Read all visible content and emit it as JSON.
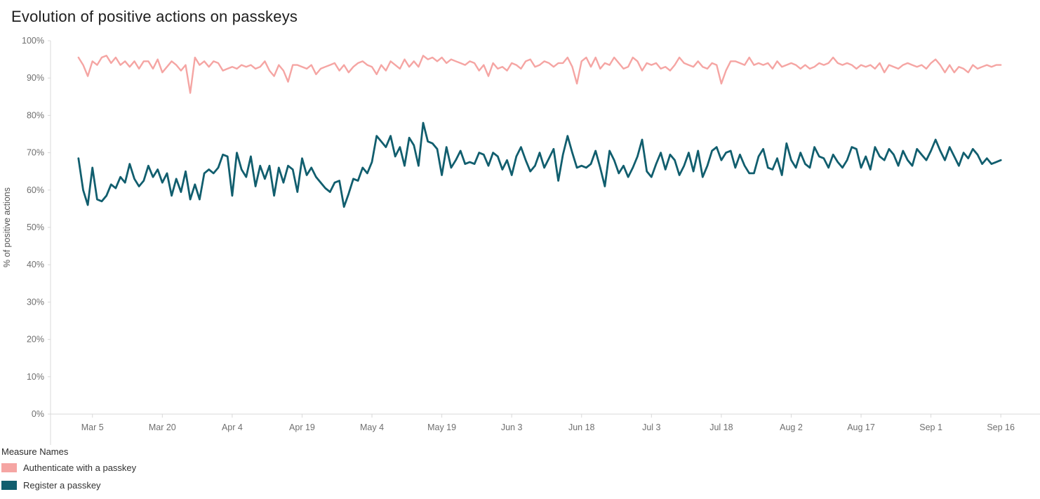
{
  "title": "Evolution of positive actions on passkeys",
  "legend": {
    "title": "Measure Names",
    "items": [
      {
        "label": "Authenticate with a passkey",
        "color": "#f5a5a3"
      },
      {
        "label": "Register a passkey",
        "color": "#115e6e"
      }
    ]
  },
  "chart_data": {
    "type": "line",
    "title": "Evolution of positive actions on passkeys",
    "xlabel": "",
    "ylabel": "% of positive actions",
    "ylim": [
      0,
      100
    ],
    "ytick_step": 10,
    "ytick_suffix": "%",
    "x_unit": "day",
    "x_range": [
      "Mar 2",
      "Sep 16"
    ],
    "grid": false,
    "legend_position": "bottom-left",
    "xticks": [
      {
        "index": 3,
        "label": "Mar 5"
      },
      {
        "index": 18,
        "label": "Mar 20"
      },
      {
        "index": 33,
        "label": "Apr 4"
      },
      {
        "index": 48,
        "label": "Apr 19"
      },
      {
        "index": 63,
        "label": "May 4"
      },
      {
        "index": 78,
        "label": "May 19"
      },
      {
        "index": 93,
        "label": "Jun 3"
      },
      {
        "index": 108,
        "label": "Jun 18"
      },
      {
        "index": 123,
        "label": "Jul 3"
      },
      {
        "index": 138,
        "label": "Jul 18"
      },
      {
        "index": 153,
        "label": "Aug 2"
      },
      {
        "index": 168,
        "label": "Aug 17"
      },
      {
        "index": 183,
        "label": "Sep 1"
      },
      {
        "index": 198,
        "label": "Sep 16"
      }
    ],
    "series": [
      {
        "name": "Authenticate with a passkey",
        "color": "#f5a5a3",
        "values": [
          95.5,
          93.5,
          90.5,
          94.5,
          93.5,
          95.5,
          96,
          94,
          95.5,
          93.5,
          94.5,
          93,
          94.5,
          92.5,
          94.5,
          94.5,
          92.5,
          95,
          91.5,
          93,
          94.5,
          93.5,
          92,
          93.5,
          86,
          95.5,
          93.5,
          94.5,
          93,
          94.5,
          94,
          92,
          92.5,
          93,
          92.5,
          93.5,
          93,
          93.5,
          92.5,
          93,
          94.5,
          92,
          90.5,
          93.5,
          92,
          89,
          93.5,
          93.5,
          93,
          92.5,
          93.5,
          91,
          92.5,
          93,
          93.5,
          94,
          92,
          93.5,
          91.5,
          93,
          94,
          94.5,
          93.5,
          93,
          91,
          93.5,
          92,
          94.5,
          93.5,
          92.5,
          95,
          93,
          94.5,
          93,
          96,
          95,
          95.5,
          94.5,
          95.5,
          94,
          95,
          94.5,
          94,
          93.5,
          94.5,
          94,
          92,
          93.5,
          90.5,
          94,
          92.5,
          93,
          92,
          94,
          93.5,
          92.5,
          94.5,
          95,
          93,
          93.5,
          94.5,
          94,
          93,
          94,
          94,
          95.5,
          93,
          88.5,
          94.5,
          95.5,
          93,
          95.5,
          92.5,
          94,
          93.5,
          95.5,
          94,
          92.5,
          93,
          95.5,
          94.5,
          92,
          94,
          93.5,
          94,
          92.5,
          93,
          92,
          93.5,
          95.5,
          94,
          93.5,
          93,
          94.5,
          93,
          92.5,
          94,
          93.5,
          88.5,
          92,
          94.5,
          94.5,
          94,
          93.5,
          95.5,
          93.5,
          94,
          93.5,
          94,
          92.5,
          94.5,
          93,
          93.5,
          94,
          93.5,
          92.5,
          93.5,
          92.5,
          93,
          94,
          93.5,
          94,
          95.5,
          94,
          93.5,
          94,
          93.5,
          92.5,
          93.5,
          93,
          93.5,
          92.5,
          94,
          91.5,
          93.5,
          93,
          92.5,
          93.5,
          94,
          93.5,
          93,
          93.5,
          92.5,
          94,
          95,
          93.5,
          91.5,
          93.5,
          91.5,
          93,
          92.5,
          91.5,
          93.5,
          92.5,
          93,
          93.5,
          93,
          93.5,
          93.5
        ]
      },
      {
        "name": "Register a passkey",
        "color": "#115e6e",
        "values": [
          68.5,
          60,
          56,
          66,
          57.5,
          57,
          58.5,
          61.5,
          60.5,
          63.5,
          62,
          67,
          63,
          61,
          62.5,
          66.5,
          63.5,
          65.5,
          62,
          64.5,
          58.5,
          63,
          59.5,
          65,
          57.5,
          61.5,
          57.5,
          64.5,
          65.5,
          64.5,
          66,
          69.5,
          69,
          58.5,
          70,
          65.5,
          63.5,
          69,
          61,
          66.5,
          63,
          66.5,
          58.5,
          66,
          62,
          66.5,
          65.5,
          59.5,
          68.5,
          64,
          66,
          63.5,
          62,
          60.5,
          59.5,
          62,
          62.5,
          55.5,
          59,
          63,
          62.5,
          66,
          64.5,
          67.5,
          74.5,
          73,
          71.5,
          74.5,
          69,
          71.5,
          66.5,
          74,
          72,
          66.5,
          78,
          73,
          72.5,
          71,
          64,
          71.5,
          66,
          68,
          70.5,
          67,
          67.5,
          67,
          70,
          69.5,
          66.5,
          70,
          69,
          65.5,
          68,
          64,
          69,
          71.5,
          68,
          65,
          66.5,
          70,
          66,
          68.5,
          71,
          62.5,
          69.5,
          74.5,
          70,
          66,
          66.5,
          66,
          67,
          70.5,
          66,
          61,
          70.5,
          68,
          64.5,
          66.5,
          63.5,
          66,
          69,
          73.5,
          65,
          63.5,
          67,
          70,
          65.5,
          69.5,
          68,
          64,
          66.5,
          70,
          65,
          70.5,
          63.5,
          66.5,
          70.5,
          71.5,
          68,
          70,
          70.5,
          66,
          69.5,
          66.5,
          64.5,
          64.5,
          69,
          71,
          66,
          65.5,
          68.5,
          64,
          72.5,
          68,
          66,
          70,
          67,
          66,
          71.5,
          69,
          68.5,
          66,
          69.5,
          67.5,
          66,
          68,
          71.5,
          71,
          66,
          69,
          65.5,
          71.5,
          69,
          68,
          71,
          69.5,
          66.5,
          70.5,
          68,
          66.5,
          71,
          69.5,
          68,
          70.5,
          73.5,
          70.5,
          68,
          71.5,
          69,
          66.5,
          70,
          68.5,
          71,
          69.5,
          67,
          68.5,
          67,
          67.5,
          68
        ]
      }
    ]
  }
}
